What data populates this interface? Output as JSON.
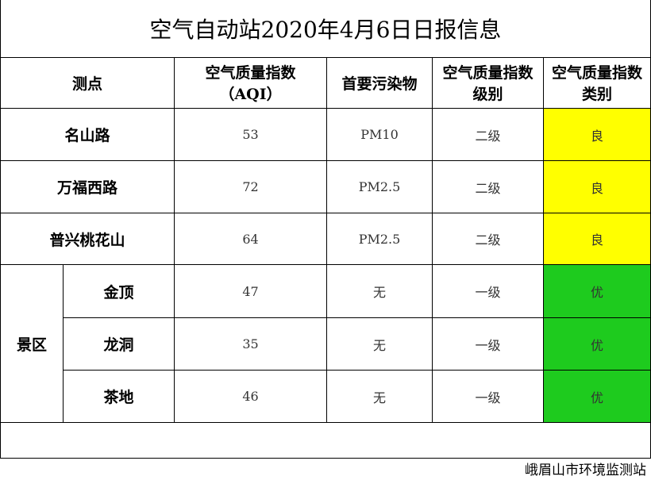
{
  "title": "空气自动站2020年4月6日日报信息",
  "headers": [
    [
      "测点"
    ],
    [
      "空气质量指数",
      "（AQI）"
    ],
    [
      "首要污染物"
    ],
    [
      "空气质量指数",
      "级别"
    ],
    [
      "空气质量指数",
      "类别"
    ]
  ],
  "rows": [
    {
      "station": "名山路",
      "aqi": 53,
      "pollutant": "PM10",
      "level": "二级",
      "category": "良",
      "color": "#ffff00"
    },
    {
      "station": "万福西路",
      "aqi": 72,
      "pollutant": "PM2.5",
      "level": "二级",
      "category": "良",
      "color": "#ffff00"
    },
    {
      "station": "普兴桃花山",
      "aqi": 64,
      "pollutant": "PM2.5",
      "level": "二级",
      "category": "良",
      "color": "#ffff00"
    }
  ],
  "group": {
    "name": "景区",
    "rows": [
      {
        "station": "金顶",
        "aqi": 47,
        "pollutant": "无",
        "level": "一级",
        "category": "优",
        "color": "#1ecb1e"
      },
      {
        "station": "龙洞",
        "aqi": 35,
        "pollutant": "无",
        "level": "一级",
        "category": "优",
        "color": "#1ecb1e"
      },
      {
        "station": "茶地",
        "aqi": 46,
        "pollutant": "无",
        "level": "一级",
        "category": "优",
        "color": "#1ecb1e"
      }
    ]
  },
  "footer": "峨眉山市环境监测站"
}
